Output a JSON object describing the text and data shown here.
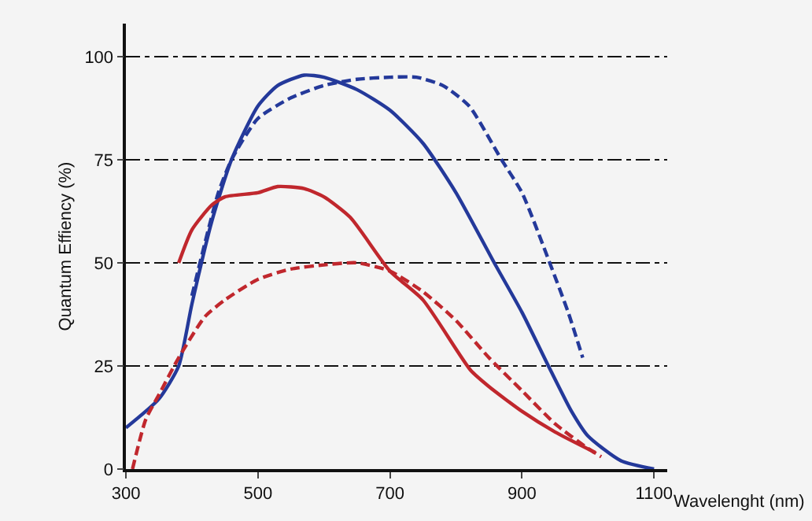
{
  "chart_data": {
    "type": "line",
    "xlabel": "Wavelenght (nm)",
    "ylabel": "Quantum Effiency (%)",
    "xlim": [
      300,
      1120
    ],
    "ylim": [
      0,
      108
    ],
    "xticks": [
      300,
      500,
      700,
      900,
      1100
    ],
    "yticks": [
      0,
      25,
      50,
      75,
      100
    ],
    "grid": "y",
    "marker": "none",
    "series": [
      {
        "color": "#24399a",
        "line_style": "solid",
        "x": [
          300,
          350,
          380,
          400,
          430,
          460,
          500,
          530,
          570,
          600,
          650,
          700,
          750,
          800,
          858,
          900,
          940,
          975,
          1000,
          1050,
          1100
        ],
        "values": [
          10,
          17,
          25,
          40,
          60,
          75,
          88,
          93,
          95.5,
          95,
          92,
          87,
          79,
          67,
          50,
          38,
          25,
          14,
          8,
          2,
          0
        ]
      },
      {
        "color": "#24399a",
        "line_style": "dashed",
        "x": [
          400,
          420,
          440,
          460,
          500,
          550,
          600,
          650,
          700,
          740,
          780,
          820,
          869,
          900,
          942,
          970,
          992
        ],
        "values": [
          42,
          55,
          67,
          75,
          85,
          90,
          93,
          94.5,
          95,
          95,
          93,
          88,
          75,
          67,
          50,
          38,
          27
        ]
      },
      {
        "color": "#c0272d",
        "line_style": "solid",
        "x": [
          380,
          400,
          430,
          450,
          500,
          530,
          570,
          600,
          640,
          700,
          750,
          822,
          850,
          900,
          950,
          1011
        ],
        "values": [
          50,
          58,
          64,
          66,
          67,
          68.5,
          68,
          66,
          61,
          48,
          41,
          24,
          20,
          14,
          9,
          4
        ]
      },
      {
        "color": "#c0272d",
        "line_style": "dashed",
        "x": [
          310,
          330,
          350,
          380,
          420,
          450,
          500,
          550,
          600,
          650,
          700,
          750,
          800,
          850,
          900,
          950,
          1000,
          1020
        ],
        "values": [
          0,
          12,
          18,
          27,
          37,
          41,
          46,
          48.5,
          49.5,
          50,
          48,
          43,
          36,
          27,
          19,
          11,
          5,
          3
        ]
      }
    ]
  }
}
